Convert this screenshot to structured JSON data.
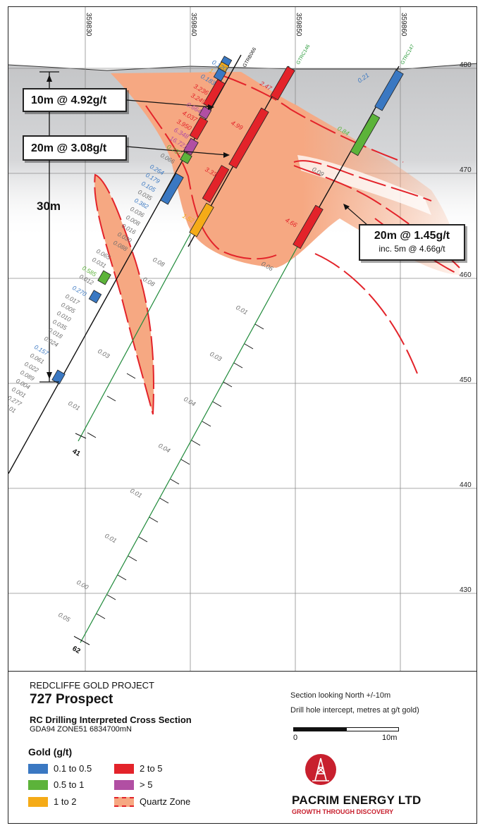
{
  "eastings": [
    "359830",
    "359840",
    "359850",
    "359860"
  ],
  "elevations": [
    "480",
    "470",
    "460",
    "450",
    "440",
    "430"
  ],
  "holes": {
    "a": "GTRB066",
    "b": "GTRC146",
    "c": "GTRC147"
  },
  "hole_ends": {
    "left": "41",
    "right": "62"
  },
  "callouts": {
    "c1": "10m @ 4.92g/t",
    "c2": "20m @ 3.08g/t",
    "c3": "20m @ 1.45g/t",
    "c3_sub": "inc. 5m @ 4.66g/t"
  },
  "scale_30m": "30m",
  "assays_gtrb066": [
    "0.120",
    "1",
    "0.183",
    "3.236",
    "3.249",
    "0.664",
    "4.037",
    "3.950",
    "6.348",
    "16.721",
    "0.737"
  ],
  "assays_left": [
    "0.066",
    "0.264",
    "0.179",
    "0.105",
    "0.035",
    "0.382",
    "0.036",
    "0.008",
    "0.016",
    "0.030",
    "0.088",
    "0.065",
    "0.031",
    "0.585",
    "0.012",
    "0.270",
    "0.017",
    "0.005",
    "0.010",
    "0.035",
    "0.018",
    "0.024",
    "0.157",
    "0.061",
    "0.022",
    "0.089",
    "0.004",
    "0.001",
    "0.277",
    "0.01"
  ],
  "assays_gtrc146": [
    "2.47",
    "4.99",
    "3.33",
    "1.52",
    "4.66",
    "0.08",
    "0.06",
    "0.08",
    "0.01",
    "0.03",
    "0.03",
    "0.01",
    "0.04",
    "0.04",
    "0.01",
    "0.01",
    "0.00",
    "0.05"
  ],
  "assays_gtrc147": [
    "0.21",
    "0.84",
    "0.09"
  ],
  "info": {
    "project": "REDCLIFFE GOLD PROJECT",
    "prospect": "727 Prospect",
    "section_title": "RC Drilling Interpreted Cross Section",
    "grid": "GDA94 ZONE51 6834700mN",
    "looking": "Section looking North +/-10m",
    "intercept_note": "Drill hole intercept, metres at g/t gold)",
    "scale_start": "0",
    "scale_end": "10m"
  },
  "legend": {
    "title": "Gold (g/t)",
    "items": [
      {
        "label": "0.1 to 0.5",
        "color": "#3a78c2"
      },
      {
        "label": "0.5 to 1",
        "color": "#5cb33a"
      },
      {
        "label": "1 to 2",
        "color": "#f5ab17"
      },
      {
        "label": "2 to 5",
        "color": "#e3232a"
      },
      {
        "label": "> 5",
        "color": "#b14fa3"
      },
      {
        "label": "Quartz Zone",
        "color": "#f6a882"
      }
    ]
  },
  "company": {
    "name": "PACRIM ENERGY LTD",
    "tagline": "GROWTH THROUGH DISCOVERY"
  },
  "colors": {
    "quartz": "#f6a882",
    "quartz_edge": "#e3232a",
    "grey_zone": "#cfd0d2",
    "blue": "#3a78c2",
    "green": "#5cb33a",
    "orange": "#f5ab17",
    "red": "#e3232a",
    "purple": "#b14fa3"
  }
}
